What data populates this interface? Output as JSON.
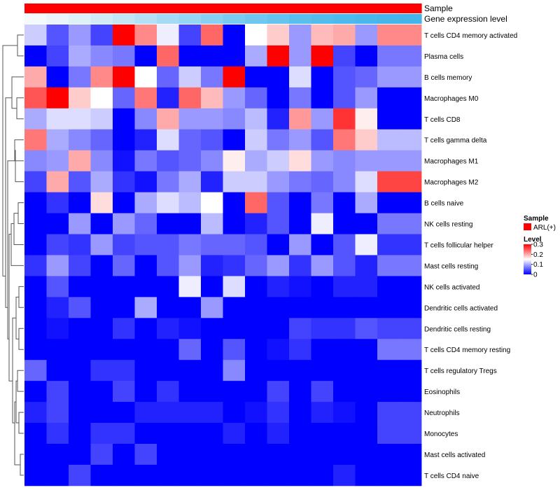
{
  "chart_data": {
    "type": "heatmap",
    "annotation_labels": [
      "Sample",
      "Gene expression level"
    ],
    "sample_group": "ARL(+)",
    "sample_color": "#ff0000",
    "expression_level_colors": [
      "#f4f9fc",
      "#eaf4fa",
      "#def0f8",
      "#d0ebf7",
      "#c2e6f6",
      "#b3e0f5",
      "#a4dbf4",
      "#96d5f3",
      "#88d0f2",
      "#7bcbf1",
      "#6fc7f0",
      "#64c3ef",
      "#5bbfee",
      "#54bced",
      "#4eb9ec",
      "#4ab7eb",
      "#47b5ea",
      "#45b4ea"
    ],
    "rows": [
      "T cells CD4 memory activated",
      "Plasma cells",
      "B cells memory",
      "Macrophages M0",
      "T cells CD8",
      "T cells gamma delta",
      "Macrophages M1",
      "Macrophages M2",
      "B cells naive",
      "NK cells resting",
      "T cells follicular helper",
      "Mast cells resting",
      "NK cells activated",
      "Dendritic cells activated",
      "Dendritic cells resting",
      "T cells CD4 memory resting",
      "T cells regulatory  Tregs",
      "Eosinophils",
      "Neutrophils",
      "Monocytes",
      "Mast cells activated",
      "T cells CD4 naive"
    ],
    "n_columns": 18,
    "values": [
      [
        0.12,
        0.05,
        0.09,
        0.04,
        0.3,
        0.22,
        0.14,
        0.04,
        0.24,
        0.0,
        0.15,
        0.18,
        0.09,
        0.19,
        0.2,
        0.09,
        0.22,
        0.22
      ],
      [
        0.0,
        0.04,
        0.1,
        0.08,
        0.07,
        0.0,
        0.24,
        0.0,
        0.0,
        0.0,
        0.1,
        0.3,
        0.09,
        0.3,
        0.04,
        0.0,
        0.07,
        0.07
      ],
      [
        0.2,
        0.0,
        0.07,
        0.22,
        0.3,
        0.15,
        0.06,
        0.12,
        0.07,
        0.3,
        0.0,
        0.0,
        0.13,
        0.0,
        0.05,
        0.06,
        0.09,
        0.09
      ],
      [
        0.25,
        0.3,
        0.18,
        0.15,
        0.06,
        0.23,
        0.02,
        0.24,
        0.19,
        0.09,
        0.06,
        0.0,
        0.07,
        0.0,
        0.05,
        0.09,
        0.0,
        0.0
      ],
      [
        0.1,
        0.13,
        0.13,
        0.12,
        0.0,
        0.08,
        0.2,
        0.09,
        0.09,
        0.08,
        0.11,
        0.02,
        0.21,
        0.09,
        0.27,
        0.16,
        0.0,
        0.0
      ],
      [
        0.23,
        0.1,
        0.08,
        0.06,
        0.0,
        0.02,
        0.13,
        0.06,
        0.05,
        0.0,
        0.12,
        0.07,
        0.09,
        0.05,
        0.23,
        0.18,
        0.11,
        0.11
      ],
      [
        0.08,
        0.09,
        0.2,
        0.08,
        0.01,
        0.07,
        0.05,
        0.06,
        0.08,
        0.16,
        0.1,
        0.12,
        0.17,
        0.09,
        0.08,
        0.09,
        0.09,
        0.09
      ],
      [
        0.04,
        0.2,
        0.05,
        0.1,
        0.03,
        0.01,
        0.07,
        0.1,
        0.02,
        0.12,
        0.12,
        0.09,
        0.07,
        0.06,
        0.08,
        0.13,
        0.26,
        0.26
      ],
      [
        0.0,
        0.03,
        0.0,
        0.17,
        0.0,
        0.1,
        0.13,
        0.11,
        0.15,
        0.0,
        0.24,
        0.05,
        0.0,
        0.07,
        0.0,
        0.1,
        0.0,
        0.0
      ],
      [
        0.0,
        0.0,
        0.09,
        0.0,
        0.09,
        0.06,
        0.0,
        0.0,
        0.11,
        0.0,
        0.02,
        0.05,
        0.0,
        0.14,
        0.0,
        0.0,
        0.07,
        0.07
      ],
      [
        0.0,
        0.04,
        0.03,
        0.09,
        0.04,
        0.05,
        0.05,
        0.07,
        0.06,
        0.06,
        0.05,
        0.0,
        0.09,
        0.0,
        0.05,
        0.14,
        0.03,
        0.03
      ],
      [
        0.03,
        0.09,
        0.04,
        0.0,
        0.06,
        0.0,
        0.05,
        0.09,
        0.02,
        0.03,
        0.06,
        0.09,
        0.03,
        0.09,
        0.05,
        0.02,
        0.07,
        0.07
      ],
      [
        0.0,
        0.05,
        0.0,
        0.0,
        0.0,
        0.0,
        0.0,
        0.14,
        0.0,
        0.13,
        0.0,
        0.02,
        0.01,
        0.0,
        0.02,
        0.02,
        0.0,
        0.0
      ],
      [
        0.0,
        0.02,
        0.05,
        0.0,
        0.0,
        0.1,
        0.0,
        0.0,
        0.09,
        0.0,
        0.0,
        0.0,
        0.0,
        0.0,
        0.0,
        0.0,
        0.0,
        0.0
      ],
      [
        0.0,
        0.01,
        0.0,
        0.0,
        0.03,
        0.0,
        0.02,
        0.01,
        0.0,
        0.0,
        0.0,
        0.0,
        0.04,
        0.03,
        0.03,
        0.05,
        0.04,
        0.04
      ],
      [
        0.0,
        0.0,
        0.0,
        0.0,
        0.0,
        0.0,
        0.0,
        0.06,
        0.0,
        0.05,
        0.0,
        0.01,
        0.03,
        0.0,
        0.0,
        0.0,
        0.07,
        0.07
      ],
      [
        0.06,
        0.0,
        0.0,
        0.03,
        0.03,
        0.0,
        0.0,
        0.0,
        0.0,
        0.08,
        0.0,
        0.0,
        0.0,
        0.0,
        0.0,
        0.0,
        0.0,
        0.0
      ],
      [
        0.0,
        0.04,
        0.0,
        0.0,
        0.04,
        0.0,
        0.03,
        0.0,
        0.0,
        0.0,
        0.0,
        0.04,
        0.0,
        0.04,
        0.0,
        0.0,
        0.0,
        0.0
      ],
      [
        0.02,
        0.04,
        0.0,
        0.0,
        0.0,
        0.02,
        0.02,
        0.02,
        0.02,
        0.0,
        0.01,
        0.03,
        0.0,
        0.02,
        0.01,
        0.0,
        0.04,
        0.04
      ],
      [
        0.0,
        0.03,
        0.0,
        0.03,
        0.03,
        0.0,
        0.0,
        0.0,
        0.0,
        0.02,
        0.0,
        0.02,
        0.0,
        0.0,
        0.0,
        0.0,
        0.04,
        0.04
      ],
      [
        0.0,
        0.0,
        0.0,
        0.04,
        0.0,
        0.04,
        0.0,
        0.0,
        0.0,
        0.0,
        0.0,
        0.0,
        0.0,
        0.0,
        0.0,
        0.0,
        0.0,
        0.0
      ],
      [
        0.0,
        0.0,
        0.04,
        0.0,
        0.0,
        0.0,
        0.0,
        0.0,
        0.0,
        0.0,
        0.0,
        0.0,
        0.0,
        0.0,
        0.02,
        0.0,
        0.0,
        0.0
      ]
    ],
    "color_scale": {
      "min": 0,
      "max": 0.3,
      "low": "#0000ff",
      "mid": "#ffffff",
      "mid_value": 0.15,
      "high": "#ff0000"
    },
    "legend": {
      "sample_title": "Sample",
      "level_title": "Level",
      "ticks": [
        {
          "label": "0.3",
          "value": 0.3
        },
        {
          "label": "0.2",
          "value": 0.2
        },
        {
          "label": "0.1",
          "value": 0.1
        },
        {
          "label": "0",
          "value": 0
        }
      ],
      "position": "right"
    },
    "dendrogram": "rows"
  }
}
